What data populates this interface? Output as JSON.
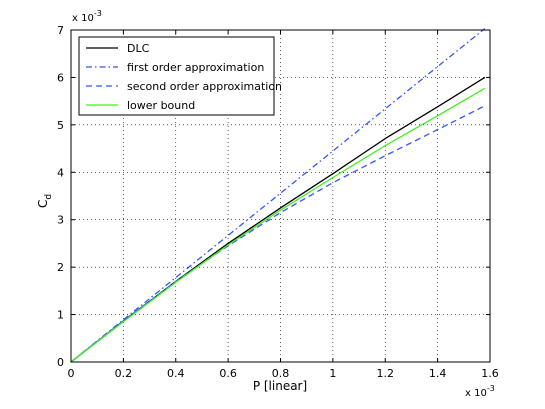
{
  "chart_data": {
    "type": "line",
    "xlabel": "P [linear]",
    "ylabel": "C",
    "ylabel_sub": "d",
    "x_exponent": "x 10",
    "x_exponent_power": "-3",
    "y_exponent": "x 10",
    "y_exponent_power": "-3",
    "xlim": [
      0,
      1.6
    ],
    "ylim": [
      0,
      7
    ],
    "x_ticks": [
      0,
      0.2,
      0.4,
      0.6,
      0.8,
      1,
      1.2,
      1.4,
      1.6
    ],
    "x_tick_labels": [
      "0",
      "0.2",
      "0.4",
      "0.6",
      "0.8",
      "1",
      "1.2",
      "1.4",
      "1.6"
    ],
    "y_ticks": [
      0,
      1,
      2,
      3,
      4,
      5,
      6,
      7
    ],
    "y_tick_labels": [
      "0",
      "1",
      "2",
      "3",
      "4",
      "5",
      "6",
      "7"
    ],
    "grid": true,
    "legend_position": "top-left",
    "series": [
      {
        "name": "DLC",
        "color": "#000000",
        "dash": "solid",
        "x": [
          0,
          0.2,
          0.4,
          0.6,
          0.8,
          1.0,
          1.2,
          1.4,
          1.58
        ],
        "y": [
          0,
          0.86,
          1.7,
          2.5,
          3.25,
          3.97,
          4.71,
          5.38,
          6.0
        ]
      },
      {
        "name": "first order approximation",
        "color": "#3355ff",
        "dash": "dashdot",
        "x": [
          0,
          1.58
        ],
        "y": [
          0,
          7.03
        ]
      },
      {
        "name": "second order approximation",
        "color": "#3355ff",
        "dash": "dashed",
        "x": [
          0,
          0.2,
          0.4,
          0.6,
          0.8,
          1.0,
          1.2,
          1.4,
          1.58
        ],
        "y": [
          0,
          0.87,
          1.7,
          2.45,
          3.15,
          3.78,
          4.35,
          4.9,
          5.4
        ]
      },
      {
        "name": "lower bound",
        "color": "#44ee22",
        "dash": "solid",
        "x": [
          0,
          0.2,
          0.4,
          0.6,
          0.8,
          1.0,
          1.2,
          1.4,
          1.58
        ],
        "y": [
          0,
          0.85,
          1.68,
          2.47,
          3.2,
          3.89,
          4.56,
          5.19,
          5.77
        ]
      }
    ]
  }
}
